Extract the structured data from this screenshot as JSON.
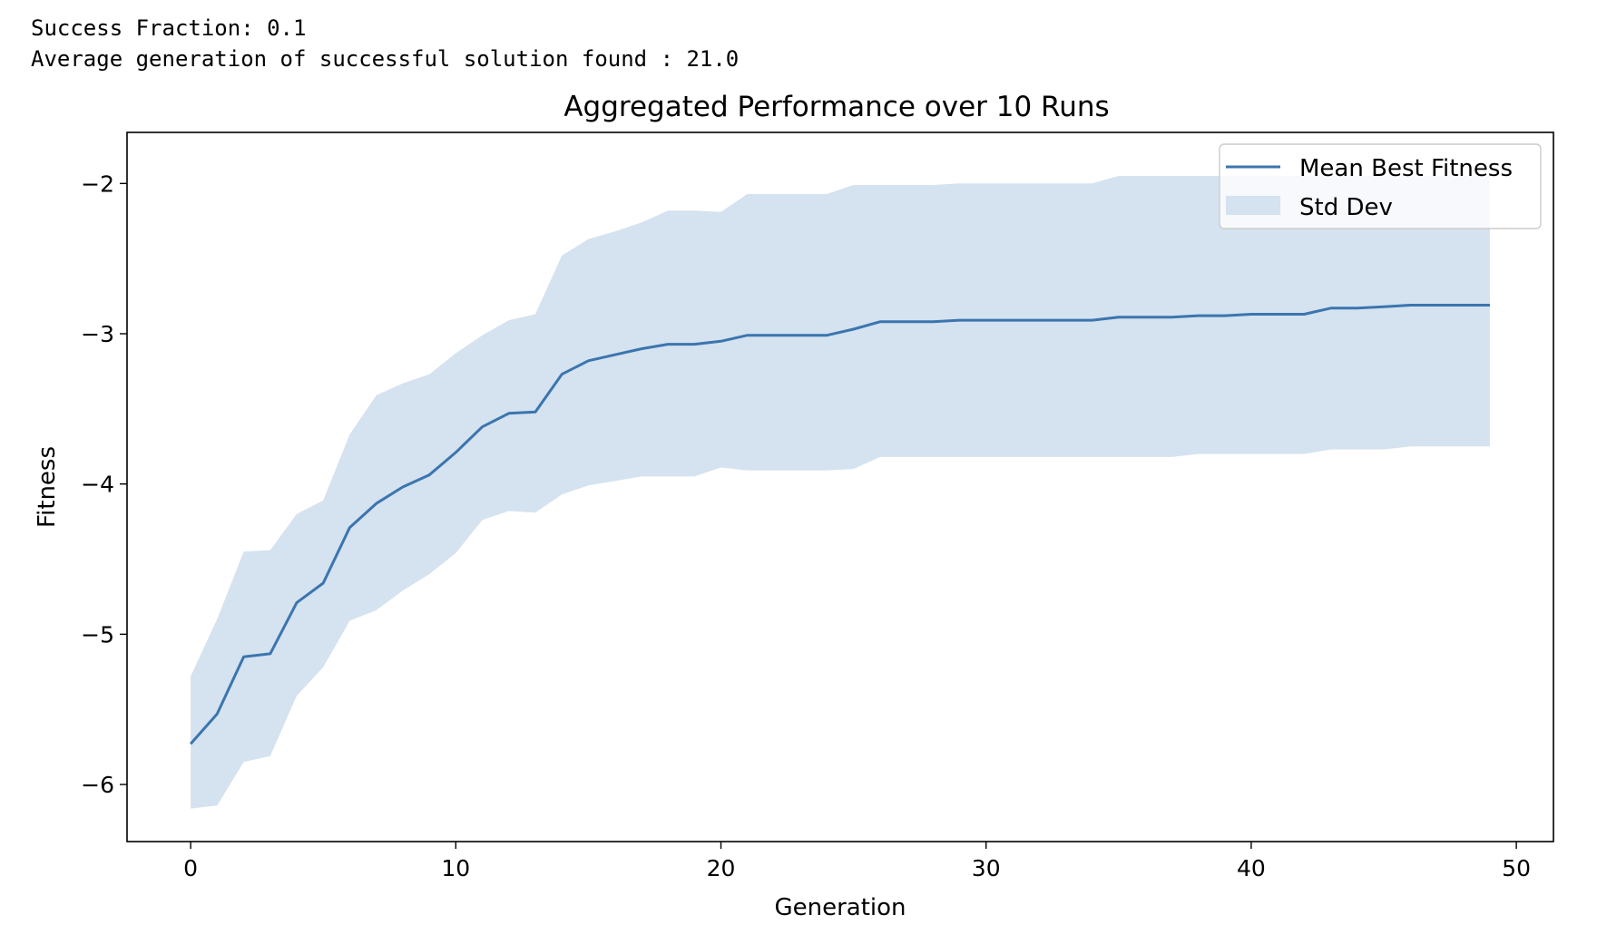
{
  "console": {
    "line1": "Success Fraction: 0.1",
    "line2": "Average generation of successful solution found : 21.0"
  },
  "colors": {
    "line": "#3b75af",
    "band": "#d5e2ef",
    "axis": "#000000"
  },
  "chart_data": {
    "type": "line",
    "title": "Aggregated Performance over 10 Runs",
    "xlabel": "Generation",
    "ylabel": "Fitness",
    "xlim": [
      -2.4,
      51.4
    ],
    "ylim": [
      -6.38,
      -1.66
    ],
    "xticks": [
      0,
      10,
      20,
      30,
      40,
      50
    ],
    "yticks": [
      -6,
      -5,
      -4,
      -3,
      -2
    ],
    "ytick_labels": [
      "−6",
      "−5",
      "−4",
      "−3",
      "−2"
    ],
    "grid": false,
    "legend_position": "top-right",
    "x": [
      0,
      1,
      2,
      3,
      4,
      5,
      6,
      7,
      8,
      9,
      10,
      11,
      12,
      13,
      14,
      15,
      16,
      17,
      18,
      19,
      20,
      21,
      22,
      23,
      24,
      25,
      26,
      27,
      28,
      29,
      30,
      31,
      32,
      33,
      34,
      35,
      36,
      37,
      38,
      39,
      40,
      41,
      42,
      43,
      44,
      45,
      46,
      47,
      48,
      49
    ],
    "series": [
      {
        "name": "Mean Best Fitness",
        "values": [
          -5.73,
          -5.53,
          -5.15,
          -5.13,
          -4.79,
          -4.66,
          -4.29,
          -4.13,
          -4.02,
          -3.94,
          -3.79,
          -3.62,
          -3.53,
          -3.52,
          -3.27,
          -3.18,
          -3.14,
          -3.1,
          -3.07,
          -3.07,
          -3.05,
          -3.01,
          -3.01,
          -3.01,
          -3.01,
          -2.97,
          -2.92,
          -2.92,
          -2.92,
          -2.91,
          -2.91,
          -2.91,
          -2.91,
          -2.91,
          -2.91,
          -2.89,
          -2.89,
          -2.89,
          -2.88,
          -2.88,
          -2.87,
          -2.87,
          -2.87,
          -2.83,
          -2.83,
          -2.82,
          -2.81,
          -2.81,
          -2.81,
          -2.81
        ]
      },
      {
        "name": "Std Dev",
        "kind": "band",
        "upper": [
          -5.28,
          -4.9,
          -4.45,
          -4.44,
          -4.2,
          -4.11,
          -3.67,
          -3.41,
          -3.33,
          -3.27,
          -3.13,
          -3.01,
          -2.91,
          -2.87,
          -2.48,
          -2.37,
          -2.32,
          -2.26,
          -2.18,
          -2.18,
          -2.19,
          -2.07,
          -2.07,
          -2.07,
          -2.07,
          -2.01,
          -2.01,
          -2.01,
          -2.01,
          -2.0,
          -2.0,
          -2.0,
          -2.0,
          -2.0,
          -2.0,
          -1.95,
          -1.95,
          -1.95,
          -1.95,
          -1.95,
          -1.95,
          -1.95,
          -1.95,
          -1.95,
          -1.95,
          -1.95,
          -1.95,
          -1.95,
          -1.95,
          -1.95
        ],
        "lower": [
          -6.16,
          -6.14,
          -5.85,
          -5.81,
          -5.41,
          -5.22,
          -4.91,
          -4.84,
          -4.71,
          -4.6,
          -4.46,
          -4.24,
          -4.18,
          -4.19,
          -4.07,
          -4.01,
          -3.98,
          -3.95,
          -3.95,
          -3.95,
          -3.89,
          -3.91,
          -3.91,
          -3.91,
          -3.91,
          -3.9,
          -3.82,
          -3.82,
          -3.82,
          -3.82,
          -3.82,
          -3.82,
          -3.82,
          -3.82,
          -3.82,
          -3.82,
          -3.82,
          -3.82,
          -3.8,
          -3.8,
          -3.8,
          -3.8,
          -3.8,
          -3.77,
          -3.77,
          -3.77,
          -3.75,
          -3.75,
          -3.75,
          -3.75
        ]
      }
    ]
  }
}
